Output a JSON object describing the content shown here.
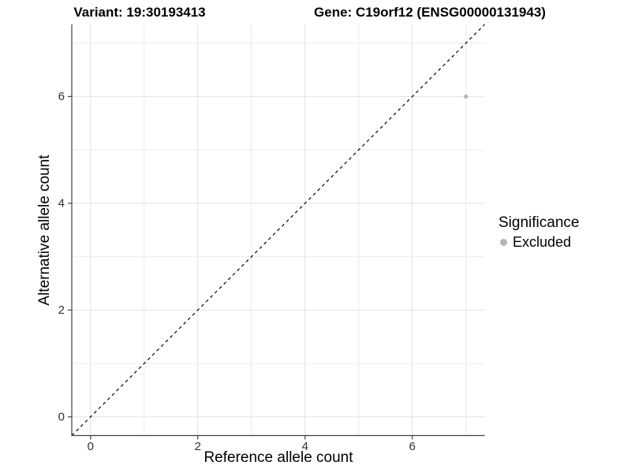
{
  "header": {
    "variant_title": "Variant: 19:30193413",
    "gene_title": "Gene: C19orf12 (ENSG00000131943)"
  },
  "chart_data": {
    "type": "scatter",
    "xlabel": "Reference allele count",
    "ylabel": "Alternative allele count",
    "xlim": [
      -0.35,
      7.35
    ],
    "ylim": [
      -0.35,
      7.35
    ],
    "x_ticks": [
      0,
      2,
      4,
      6
    ],
    "y_ticks": [
      0,
      2,
      4,
      6
    ],
    "x_minor_ticks": [
      1,
      3,
      5,
      7
    ],
    "y_minor_ticks": [
      1,
      3,
      5,
      7
    ],
    "grid": "major+minor",
    "reference_line": {
      "type": "identity",
      "slope": 1,
      "intercept": 0,
      "style": "dashed",
      "color": "#000000"
    },
    "series": [
      {
        "name": "Excluded",
        "color": "#b4b4b4",
        "points": [
          {
            "x": 7,
            "y": 6
          }
        ]
      }
    ],
    "legend": {
      "title": "Significance",
      "position": "right",
      "items": [
        {
          "label": "Excluded",
          "color": "#b4b4b4"
        }
      ]
    }
  },
  "colors": {
    "background": "#ffffff",
    "grid_major": "#e2e2e2",
    "grid_minor": "#ebebeb",
    "axis_line": "#404040",
    "tick_label": "#303030",
    "point_excluded": "#b4b4b4"
  }
}
